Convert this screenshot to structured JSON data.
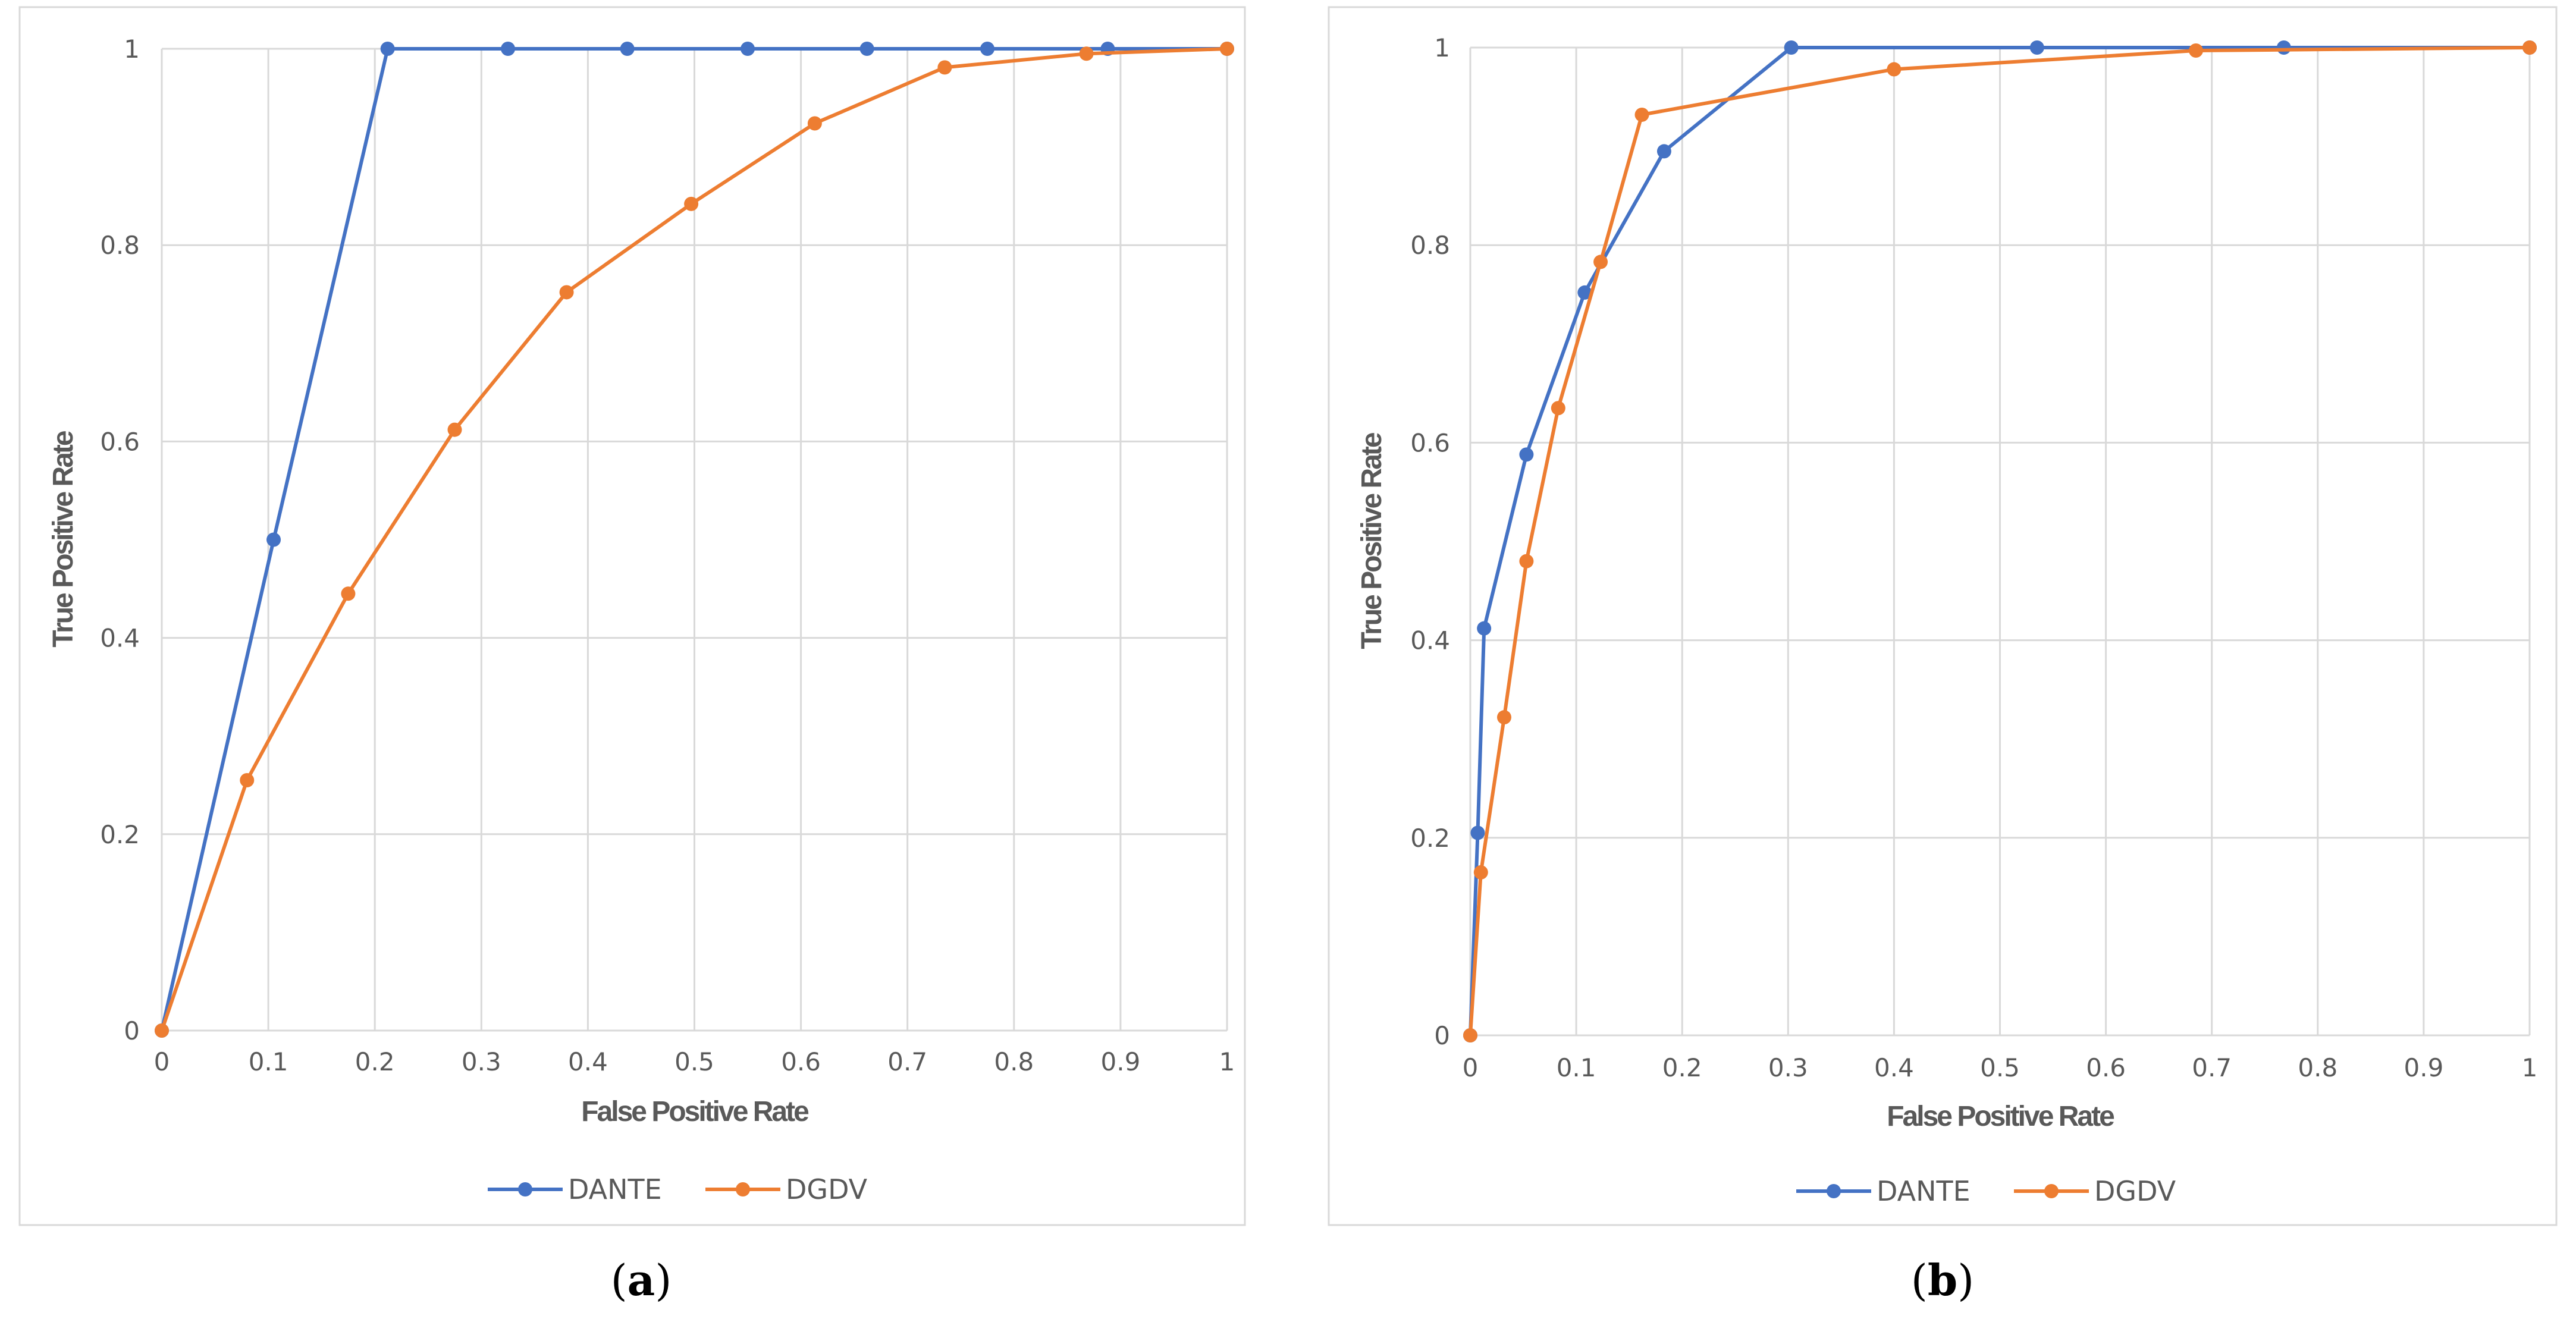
{
  "chart_data": [
    {
      "type": "line",
      "caption": "a",
      "xlabel": "False Positive Rate",
      "ylabel": "True Positive Rate",
      "xlim": [
        0,
        1
      ],
      "ylim": [
        0,
        1
      ],
      "grid": true,
      "legend_position": "bottom",
      "x_ticks": [
        "0",
        "0.1",
        "0.2",
        "0.3",
        "0.4",
        "0.5",
        "0.6",
        "0.7",
        "0.8",
        "0.9",
        "1"
      ],
      "y_ticks": [
        "0",
        "0.2",
        "0.4",
        "0.6",
        "0.8",
        "1"
      ],
      "series": [
        {
          "name": "DANTE",
          "color": "#4472c4",
          "points": [
            [
              0,
              0
            ],
            [
              0.105,
              0.5
            ],
            [
              0.212,
              1.0
            ],
            [
              0.325,
              1.0
            ],
            [
              0.437,
              1.0
            ],
            [
              0.55,
              1.0
            ],
            [
              0.662,
              1.0
            ],
            [
              0.775,
              1.0
            ],
            [
              0.888,
              1.0
            ],
            [
              1.0,
              1.0
            ]
          ]
        },
        {
          "name": "DGDV",
          "color": "#ed7d31",
          "points": [
            [
              0,
              0
            ],
            [
              0.08,
              0.255
            ],
            [
              0.175,
              0.445
            ],
            [
              0.275,
              0.612
            ],
            [
              0.38,
              0.752
            ],
            [
              0.497,
              0.842
            ],
            [
              0.613,
              0.924
            ],
            [
              0.735,
              0.981
            ],
            [
              0.868,
              0.995
            ],
            [
              1.0,
              1.0
            ]
          ]
        }
      ]
    },
    {
      "type": "line",
      "caption": "b",
      "xlabel": "False Positive Rate",
      "ylabel": "True Positive Rate",
      "xlim": [
        0,
        1
      ],
      "ylim": [
        0,
        1
      ],
      "grid": true,
      "legend_position": "bottom",
      "x_ticks": [
        "0",
        "0.1",
        "0.2",
        "0.3",
        "0.4",
        "0.5",
        "0.6",
        "0.7",
        "0.8",
        "0.9",
        "1"
      ],
      "y_ticks": [
        "0",
        "0.2",
        "0.4",
        "0.6",
        "0.8",
        "1"
      ],
      "series": [
        {
          "name": "DANTE",
          "color": "#4472c4",
          "points": [
            [
              0,
              0
            ],
            [
              0.007,
              0.205
            ],
            [
              0.013,
              0.412
            ],
            [
              0.053,
              0.588
            ],
            [
              0.108,
              0.752
            ],
            [
              0.183,
              0.895
            ],
            [
              0.303,
              1.0
            ],
            [
              0.535,
              1.0
            ],
            [
              0.768,
              1.0
            ],
            [
              1.0,
              1.0
            ]
          ]
        },
        {
          "name": "DGDV",
          "color": "#ed7d31",
          "points": [
            [
              0,
              0
            ],
            [
              0.01,
              0.165
            ],
            [
              0.032,
              0.322
            ],
            [
              0.053,
              0.48
            ],
            [
              0.083,
              0.635
            ],
            [
              0.123,
              0.783
            ],
            [
              0.162,
              0.932
            ],
            [
              0.4,
              0.978
            ],
            [
              0.685,
              0.997
            ],
            [
              1.0,
              1.0
            ]
          ]
        }
      ]
    }
  ]
}
